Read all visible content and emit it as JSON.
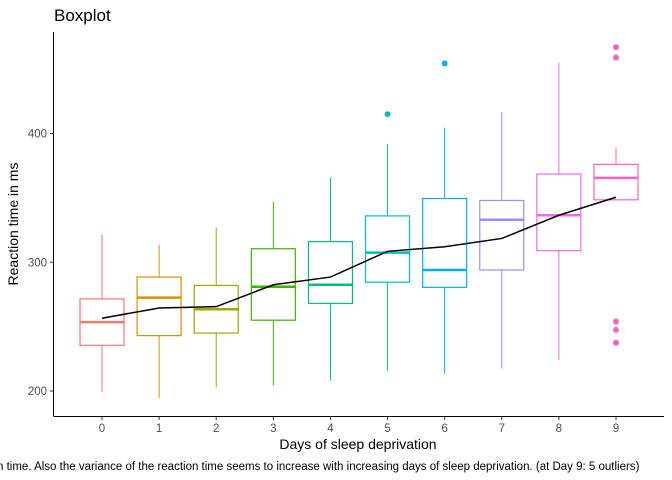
{
  "chart_data": {
    "type": "boxplot",
    "title": "Boxplot",
    "xlabel": "Days of sleep deprivation",
    "ylabel": "Reaction time in ms",
    "caption": "n time. Also the variance of the reaction time seems to increase with increasing days of sleep deprivation. (at Day 9: 5 outliers)",
    "categories": [
      "0",
      "1",
      "2",
      "3",
      "4",
      "5",
      "6",
      "7",
      "8",
      "9"
    ],
    "y_ticks": [
      200,
      300,
      400
    ],
    "ylim": [
      185,
      480
    ],
    "grid": false,
    "legend": "none",
    "boxes": [
      {
        "day": "0",
        "min": 199.5,
        "q1": 235.5,
        "median": 253.5,
        "q3": 271.5,
        "max": 321.5,
        "outliers": [],
        "color": "#F8766D"
      },
      {
        "day": "1",
        "min": 194.5,
        "q1": 243.0,
        "median": 272.5,
        "q3": 288.5,
        "max": 313.5,
        "outliers": [],
        "color": "#D89000"
      },
      {
        "day": "2",
        "min": 203.0,
        "q1": 245.0,
        "median": 263.5,
        "q3": 282.0,
        "max": 327.0,
        "outliers": [],
        "color": "#A3A500"
      },
      {
        "day": "3",
        "min": 204.5,
        "q1": 255.0,
        "median": 281.0,
        "q3": 310.5,
        "max": 347.0,
        "outliers": [],
        "color": "#39B600"
      },
      {
        "day": "4",
        "min": 208.0,
        "q1": 268.0,
        "median": 282.5,
        "q3": 316.0,
        "max": 366.0,
        "outliers": [],
        "color": "#00BF7D"
      },
      {
        "day": "5",
        "min": 215.5,
        "q1": 284.5,
        "median": 307.5,
        "q3": 336.0,
        "max": 391.5,
        "outliers": [
          415.0
        ],
        "color": "#00BFC4"
      },
      {
        "day": "6",
        "min": 213.5,
        "q1": 280.5,
        "median": 294.0,
        "q3": 349.5,
        "max": 404.5,
        "outliers": [
          454.5
        ],
        "color": "#00B0F6"
      },
      {
        "day": "7",
        "min": 217.5,
        "q1": 294.0,
        "median": 333.0,
        "q3": 348.0,
        "max": 416.5,
        "outliers": [],
        "color": "#9590FF"
      },
      {
        "day": "8",
        "min": 224.0,
        "q1": 309.0,
        "median": 336.5,
        "q3": 368.5,
        "max": 455.0,
        "outliers": [],
        "color": "#E76BF3"
      },
      {
        "day": "9",
        "min": 348.0,
        "q1": 348.5,
        "median": 365.5,
        "q3": 376.0,
        "max": 389.0,
        "outliers": [
          467.0,
          459.0,
          254.0,
          247.5,
          237.5
        ],
        "color": "#FF62BC"
      }
    ],
    "series": [
      {
        "type": "line",
        "color": "#000000",
        "values": [
          256.5,
          264.5,
          265.5,
          282.5,
          288.5,
          308.5,
          312.0,
          318.5,
          336.5,
          350.5
        ]
      }
    ]
  }
}
